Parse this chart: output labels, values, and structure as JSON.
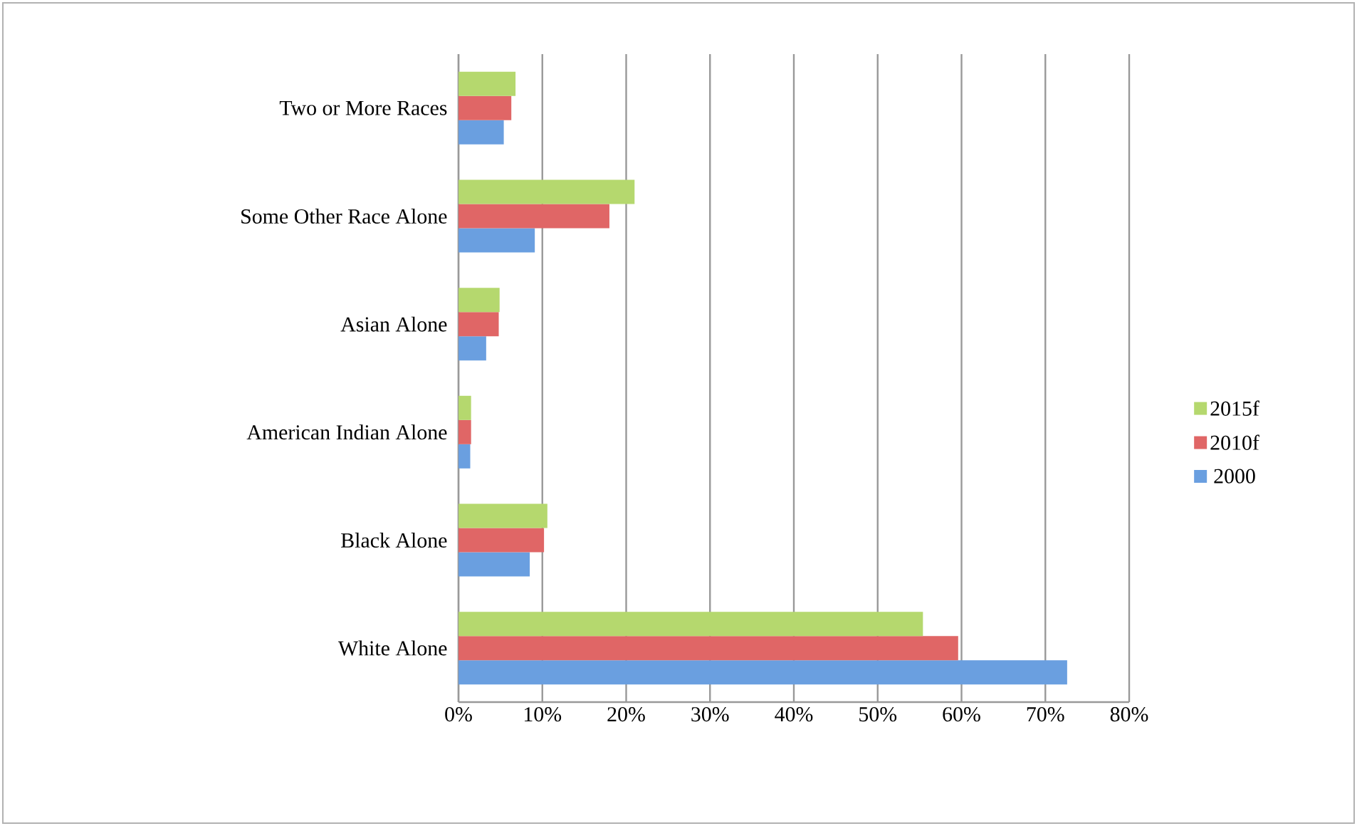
{
  "chart_data": {
    "type": "bar",
    "orientation": "horizontal",
    "categories": [
      "Two or More Races",
      "Some Other Race Alone",
      "Asian Alone",
      "American Indian Alone",
      "Black Alone",
      "White Alone"
    ],
    "series": [
      {
        "name": "2000",
        "color": "#6a9fe0",
        "values": [
          5.4,
          9.1,
          3.3,
          1.4,
          8.5,
          72.6
        ]
      },
      {
        "name": "2010f",
        "color": "#e06666",
        "values": [
          6.3,
          18.0,
          4.8,
          1.5,
          10.2,
          59.6
        ]
      },
      {
        "name": "2015f",
        "color": "#b5d86e",
        "values": [
          6.8,
          21.0,
          4.9,
          1.5,
          10.6,
          55.4
        ]
      }
    ],
    "xlim": [
      0,
      80
    ],
    "xticks": [
      {
        "value": 0,
        "label": "0%"
      },
      {
        "value": 10,
        "label": "10%"
      },
      {
        "value": 20,
        "label": "20%"
      },
      {
        "value": 30,
        "label": "30%"
      },
      {
        "value": 40,
        "label": "40%"
      },
      {
        "value": 50,
        "label": "50%"
      },
      {
        "value": 60,
        "label": "60%"
      },
      {
        "value": 70,
        "label": "70%"
      },
      {
        "value": 80,
        "label": "80%"
      }
    ],
    "grid": "x",
    "legend": "right"
  }
}
